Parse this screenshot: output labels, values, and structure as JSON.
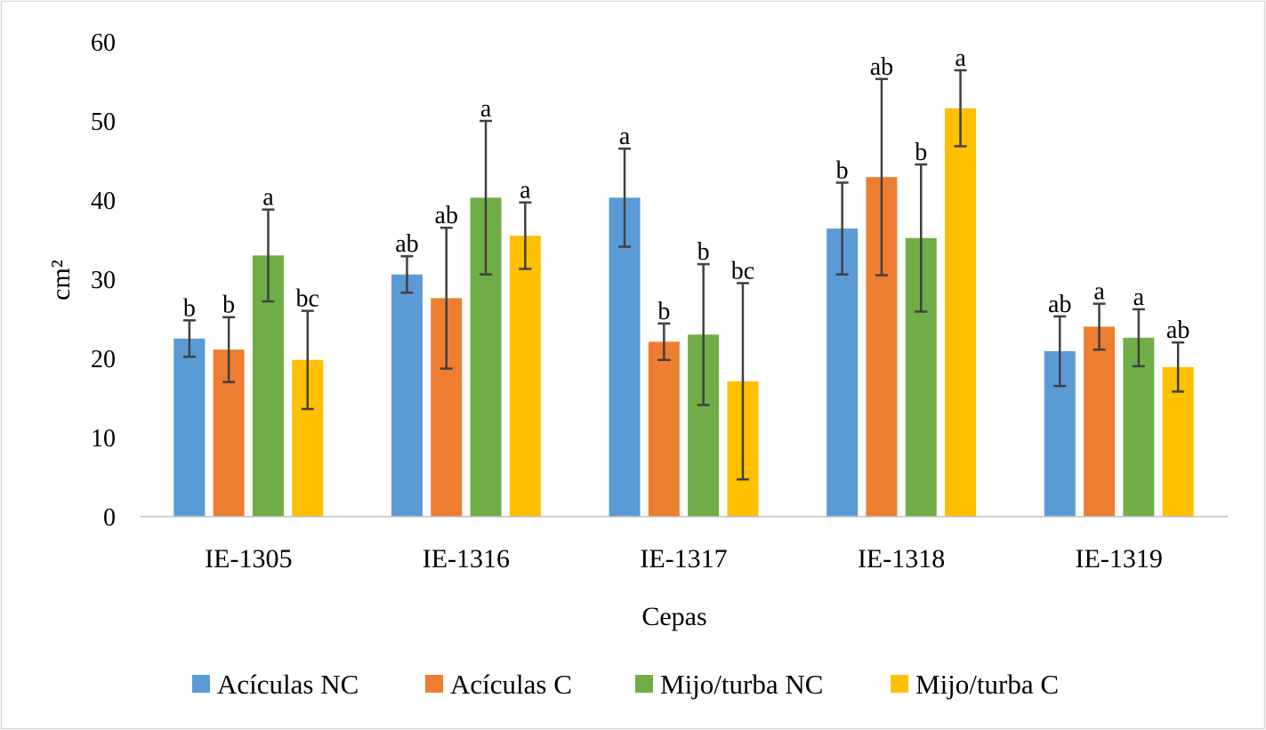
{
  "chart_data": {
    "type": "bar",
    "title": "",
    "xlabel": "Cepas",
    "ylabel": "cm²",
    "ylim": [
      0,
      60
    ],
    "yticks": [
      0,
      10,
      20,
      30,
      40,
      50,
      60
    ],
    "grid": false,
    "legend_position": "bottom",
    "categories": [
      "IE-1305",
      "IE-1316",
      "IE-1317",
      "IE-1318",
      "IE-1319"
    ],
    "series": [
      {
        "name": "Acículas NC",
        "color": "#5B9BD5",
        "values": [
          22.5,
          30.6,
          40.3,
          36.4,
          20.9
        ],
        "errors": [
          2.3,
          2.3,
          6.2,
          5.8,
          4.4
        ],
        "letters": [
          "b",
          "ab",
          "a",
          "b",
          "ab"
        ]
      },
      {
        "name": "Acículas C",
        "color": "#ED7D31",
        "values": [
          21.1,
          27.6,
          22.1,
          42.9,
          24.0
        ],
        "errors": [
          4.1,
          8.9,
          2.3,
          12.4,
          2.9
        ],
        "letters": [
          "b",
          "ab",
          "b",
          "ab",
          "a"
        ]
      },
      {
        "name": "Mijo/turba NC",
        "color": "#70AD47",
        "values": [
          33.0,
          40.3,
          23.0,
          35.2,
          22.6
        ],
        "errors": [
          5.8,
          9.7,
          8.9,
          9.3,
          3.6
        ],
        "letters": [
          "a",
          "a",
          "b",
          "b",
          "a"
        ]
      },
      {
        "name": "Mijo/turba C",
        "color": "#FFC000",
        "values": [
          19.8,
          35.5,
          17.1,
          51.6,
          18.9
        ],
        "errors": [
          6.2,
          4.2,
          12.4,
          4.8,
          3.1
        ],
        "letters": [
          "bc",
          "a",
          "bc",
          "a",
          "ab"
        ]
      }
    ]
  }
}
